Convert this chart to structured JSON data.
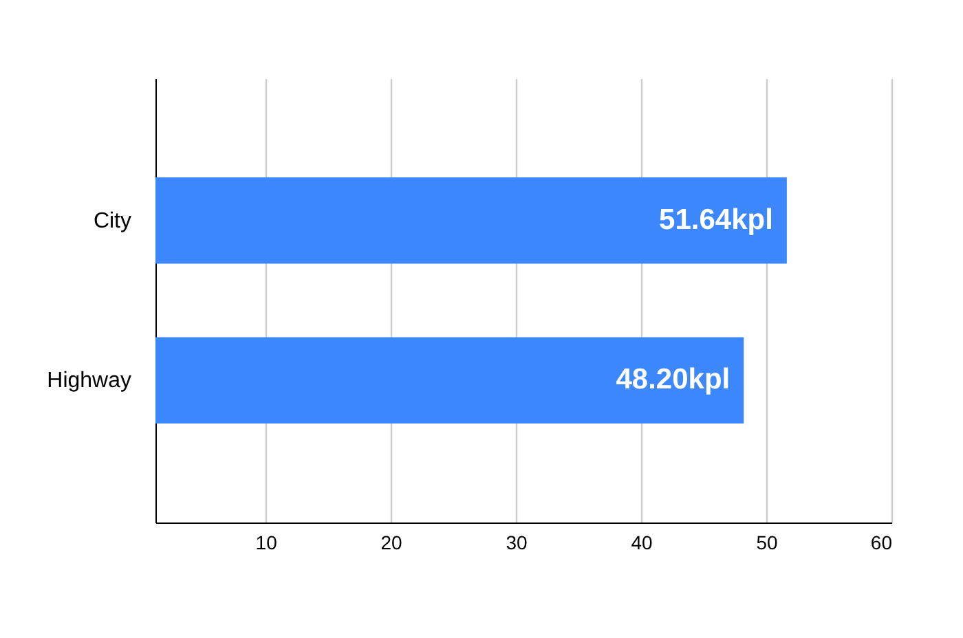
{
  "chart_data": {
    "type": "bar",
    "orientation": "horizontal",
    "categories": [
      "City",
      "Highway"
    ],
    "values": [
      51.64,
      48.2
    ],
    "value_labels": [
      "51.64kpl",
      "48.20kpl"
    ],
    "color": "#3d87fd",
    "xlim": [
      1.2,
      60
    ],
    "xticks": [
      10,
      20,
      30,
      40,
      50,
      60
    ],
    "grid": "x"
  }
}
